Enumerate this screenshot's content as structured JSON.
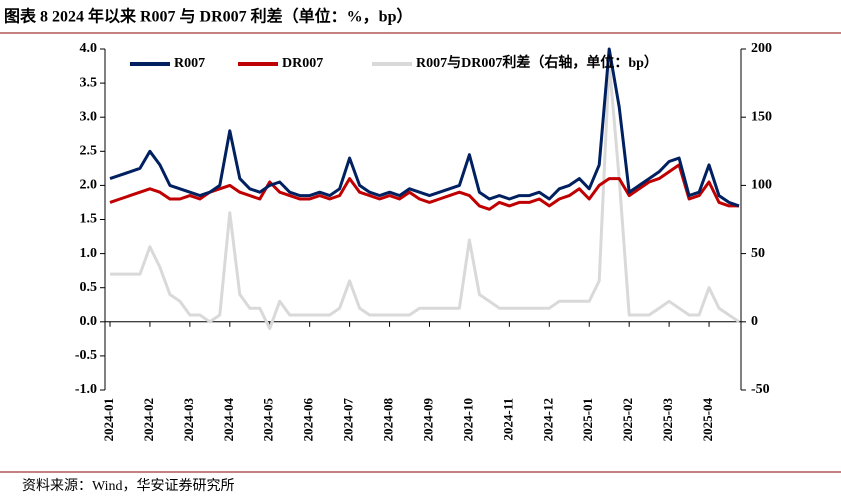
{
  "chart_data": {
    "type": "line",
    "title": "图表 8 2024 年以来 R007 与 DR007 利差（单位：%，bp）",
    "source": "资料来源：Wind，华安证券研究所",
    "categories": [
      "2024-01",
      null,
      null,
      null,
      "2024-02",
      null,
      null,
      null,
      "2024-03",
      null,
      null,
      null,
      "2024-04",
      null,
      null,
      null,
      "2024-05",
      null,
      null,
      null,
      "2024-06",
      null,
      null,
      null,
      "2024-07",
      null,
      null,
      null,
      "2024-08",
      null,
      null,
      null,
      "2024-09",
      null,
      null,
      null,
      "2024-10",
      null,
      null,
      null,
      "2024-11",
      null,
      null,
      null,
      "2024-12",
      null,
      null,
      null,
      "2025-01",
      null,
      null,
      null,
      "2025-02",
      null,
      null,
      null,
      "2025-03",
      null,
      null,
      null,
      "2025-04",
      null,
      null,
      null
    ],
    "series": [
      {
        "name": "R007",
        "color": "#002060",
        "values": [
          2.1,
          2.15,
          2.2,
          2.25,
          2.5,
          2.3,
          2.0,
          1.95,
          1.9,
          1.85,
          1.9,
          2.0,
          2.8,
          2.1,
          1.95,
          1.9,
          2.0,
          2.05,
          1.9,
          1.85,
          1.85,
          1.9,
          1.85,
          1.95,
          2.4,
          2.0,
          1.9,
          1.85,
          1.9,
          1.85,
          1.95,
          1.9,
          1.85,
          1.9,
          1.95,
          2.0,
          2.45,
          1.9,
          1.8,
          1.85,
          1.8,
          1.85,
          1.85,
          1.9,
          1.8,
          1.95,
          2.0,
          2.1,
          1.95,
          2.3,
          4.0,
          3.15,
          1.9,
          2.0,
          2.1,
          2.2,
          2.35,
          2.4,
          1.85,
          1.9,
          2.3,
          1.85,
          1.75,
          1.7
        ]
      },
      {
        "name": "DR007",
        "color": "#c00000",
        "values": [
          1.75,
          1.8,
          1.85,
          1.9,
          1.95,
          1.9,
          1.8,
          1.8,
          1.85,
          1.8,
          1.9,
          1.95,
          2.0,
          1.9,
          1.85,
          1.8,
          2.05,
          1.9,
          1.85,
          1.8,
          1.8,
          1.85,
          1.8,
          1.85,
          2.1,
          1.9,
          1.85,
          1.8,
          1.85,
          1.8,
          1.9,
          1.8,
          1.75,
          1.8,
          1.85,
          1.9,
          1.85,
          1.7,
          1.65,
          1.75,
          1.7,
          1.75,
          1.75,
          1.8,
          1.7,
          1.8,
          1.85,
          1.95,
          1.8,
          2.0,
          2.1,
          2.1,
          1.85,
          1.95,
          2.05,
          2.1,
          2.2,
          2.3,
          1.8,
          1.85,
          2.05,
          1.75,
          1.7,
          1.7
        ]
      },
      {
        "name": "R007与DR007利差（右轴，单位：bp）",
        "color": "#d9d9d9",
        "axis": "y2",
        "values": [
          35,
          35,
          35,
          35,
          55,
          40,
          20,
          15,
          5,
          5,
          0,
          5,
          80,
          20,
          10,
          10,
          -5,
          15,
          5,
          5,
          5,
          5,
          5,
          10,
          30,
          10,
          5,
          5,
          5,
          5,
          5,
          10,
          10,
          10,
          10,
          10,
          60,
          20,
          15,
          10,
          10,
          10,
          10,
          10,
          10,
          15,
          15,
          15,
          15,
          30,
          190,
          105,
          5,
          5,
          5,
          10,
          15,
          10,
          5,
          5,
          25,
          10,
          5,
          0
        ]
      }
    ],
    "ylim": [
      -1,
      4
    ],
    "yticks": [
      {
        "value": -1,
        "label": "-1.0"
      },
      -0.5,
      {
        "value": 0,
        "label": "0.0"
      },
      0.5,
      {
        "value": 1,
        "label": "1.0"
      },
      1.5,
      {
        "value": 2,
        "label": "2.0"
      },
      2.5,
      {
        "value": 3,
        "label": "3.0"
      },
      3.5,
      {
        "value": 4,
        "label": "4.0"
      }
    ],
    "y2lim": [
      -50,
      200
    ],
    "y2ticks": [
      -50,
      0,
      50,
      100,
      150,
      200
    ],
    "grid": false,
    "legend": "top"
  }
}
